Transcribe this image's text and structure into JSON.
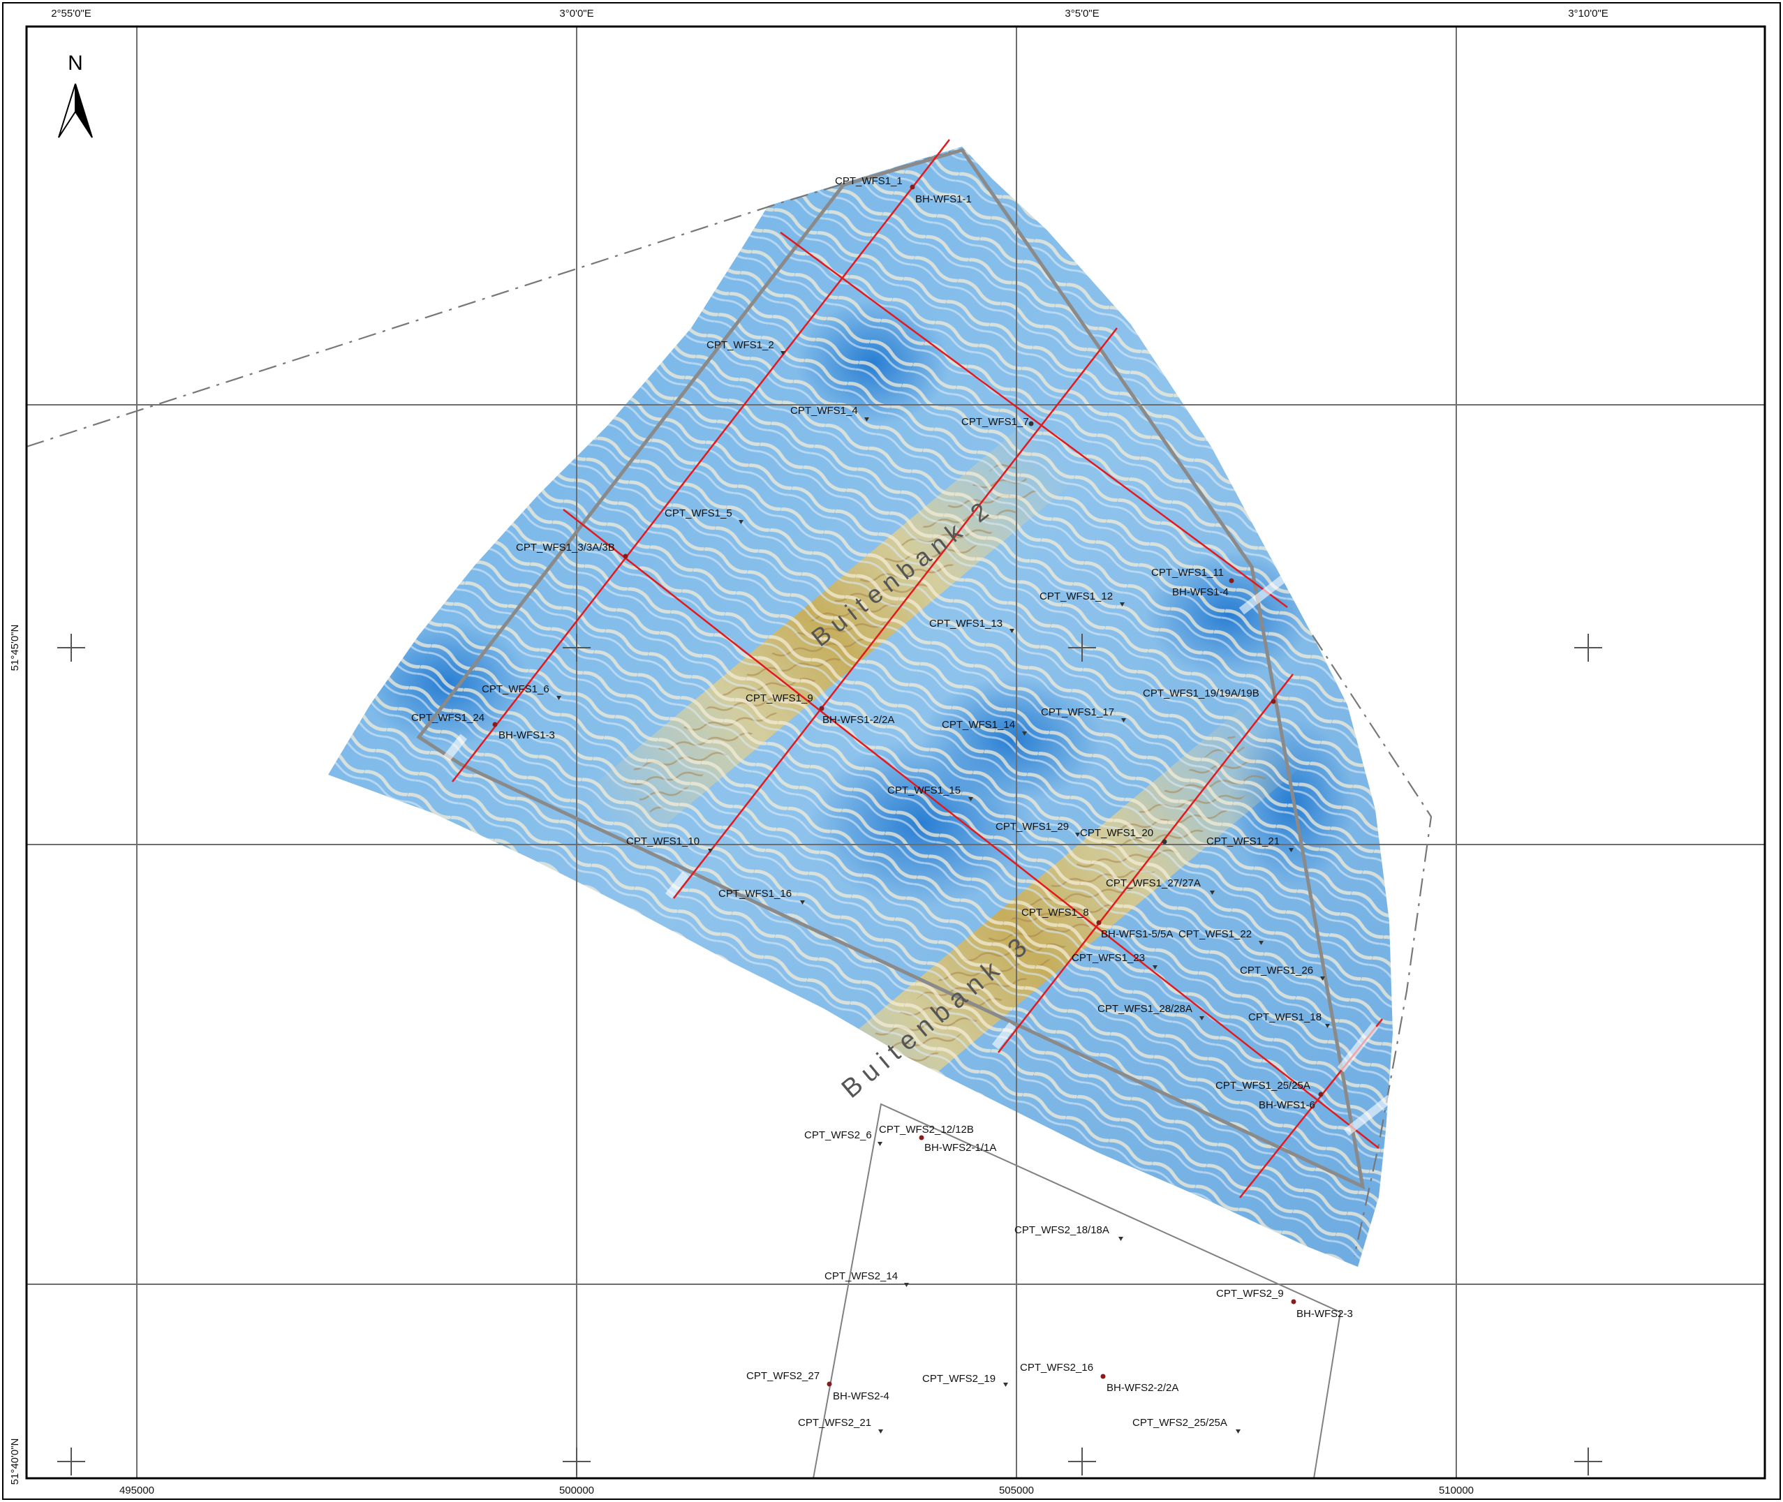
{
  "north_label": "N",
  "top_lon_labels": [
    "2°55'0\"E",
    "3°0'0\"E",
    "3°5'0\"E",
    "3°10'0\"E"
  ],
  "left_lat_labels": [
    "51°45'0\"N",
    "51°40'0\"N"
  ],
  "bottom_easting_labels": [
    "495000",
    "500000",
    "505000",
    "510000"
  ],
  "area_labels": {
    "buitenbank_2": "Buitenbank 2",
    "buitenbank_3": "Buitenbank 3"
  },
  "points": {
    "cpt_wfs1_1": "CPT_WFS1_1",
    "bh_wfs1_1": "BH-WFS1-1",
    "cpt_wfs1_2": "CPT_WFS1_2",
    "cpt_wfs1_4": "CPT_WFS1_4",
    "cpt_wfs1_7": "CPT_WFS1_7",
    "cpt_wfs1_5": "CPT_WFS1_5",
    "cpt_wfs1_3": "CPT_WFS1_3/3A/3B",
    "cpt_wfs1_11": "CPT_WFS1_11",
    "bh_wfs1_4": "BH-WFS1-4",
    "cpt_wfs1_12": "CPT_WFS1_12",
    "cpt_wfs1_13": "CPT_WFS1_13",
    "cpt_wfs1_6": "CPT_WFS1_6",
    "cpt_wfs1_24": "CPT_WFS1_24",
    "bh_wfs1_3": "BH-WFS1-3",
    "cpt_wfs1_9": "CPT_WFS1_9",
    "bh_wfs1_2": "BH-WFS1-2/2A",
    "cpt_wfs1_14": "CPT_WFS1_14",
    "cpt_wfs1_17": "CPT_WFS1_17",
    "cpt_wfs1_19": "CPT_WFS1_19/19A/19B",
    "cpt_wfs1_15": "CPT_WFS1_15",
    "cpt_wfs1_29": "CPT_WFS1_29",
    "cpt_wfs1_20": "CPT_WFS1_20",
    "cpt_wfs1_21": "CPT_WFS1_21",
    "cpt_wfs1_10": "CPT_WFS1_10",
    "cpt_wfs1_27": "CPT_WFS1_27/27A",
    "cpt_wfs1_16": "CPT_WFS1_16",
    "cpt_wfs1_8": "CPT_WFS1_8",
    "bh_wfs1_5": "BH-WFS1-5/5A",
    "cpt_wfs1_22": "CPT_WFS1_22",
    "cpt_wfs1_23": "CPT_WFS1_23",
    "cpt_wfs1_26": "CPT_WFS1_26",
    "cpt_wfs1_28": "CPT_WFS1_28/28A",
    "cpt_wfs1_18": "CPT_WFS1_18",
    "cpt_wfs1_25": "CPT_WFS1_25/25A",
    "bh_wfs1_6": "BH-WFS1-6",
    "cpt_wfs2_6": "CPT_WFS2_6",
    "cpt_wfs2_12": "CPT_WFS2_12/12B",
    "bh_wfs2_1": "BH-WFS2-1/1A",
    "cpt_wfs2_18": "CPT_WFS2_18/18A",
    "cpt_wfs2_14": "CPT_WFS2_14",
    "cpt_wfs2_9": "CPT_WFS2_9",
    "bh_wfs2_3": "BH-WFS2-3",
    "cpt_wfs2_27": "CPT_WFS2_27",
    "bh_wfs2_4": "BH-WFS2-4",
    "cpt_wfs2_19": "CPT_WFS2_19",
    "cpt_wfs2_16": "CPT_WFS2_16",
    "bh_wfs2_2": "BH-WFS2-2/2A",
    "cpt_wfs2_21": "CPT_WFS2_21",
    "cpt_wfs2_25": "CPT_WFS2_25/25A"
  },
  "colors": {
    "deep": "#2f86d8",
    "mid": "#8fc1ea",
    "shallow": "#d8e6ef",
    "sand": "#d9c483",
    "ridge": "#b89a3a",
    "line": "#e3191b",
    "boundary": "#888888",
    "grid": "#6d6d6d"
  }
}
